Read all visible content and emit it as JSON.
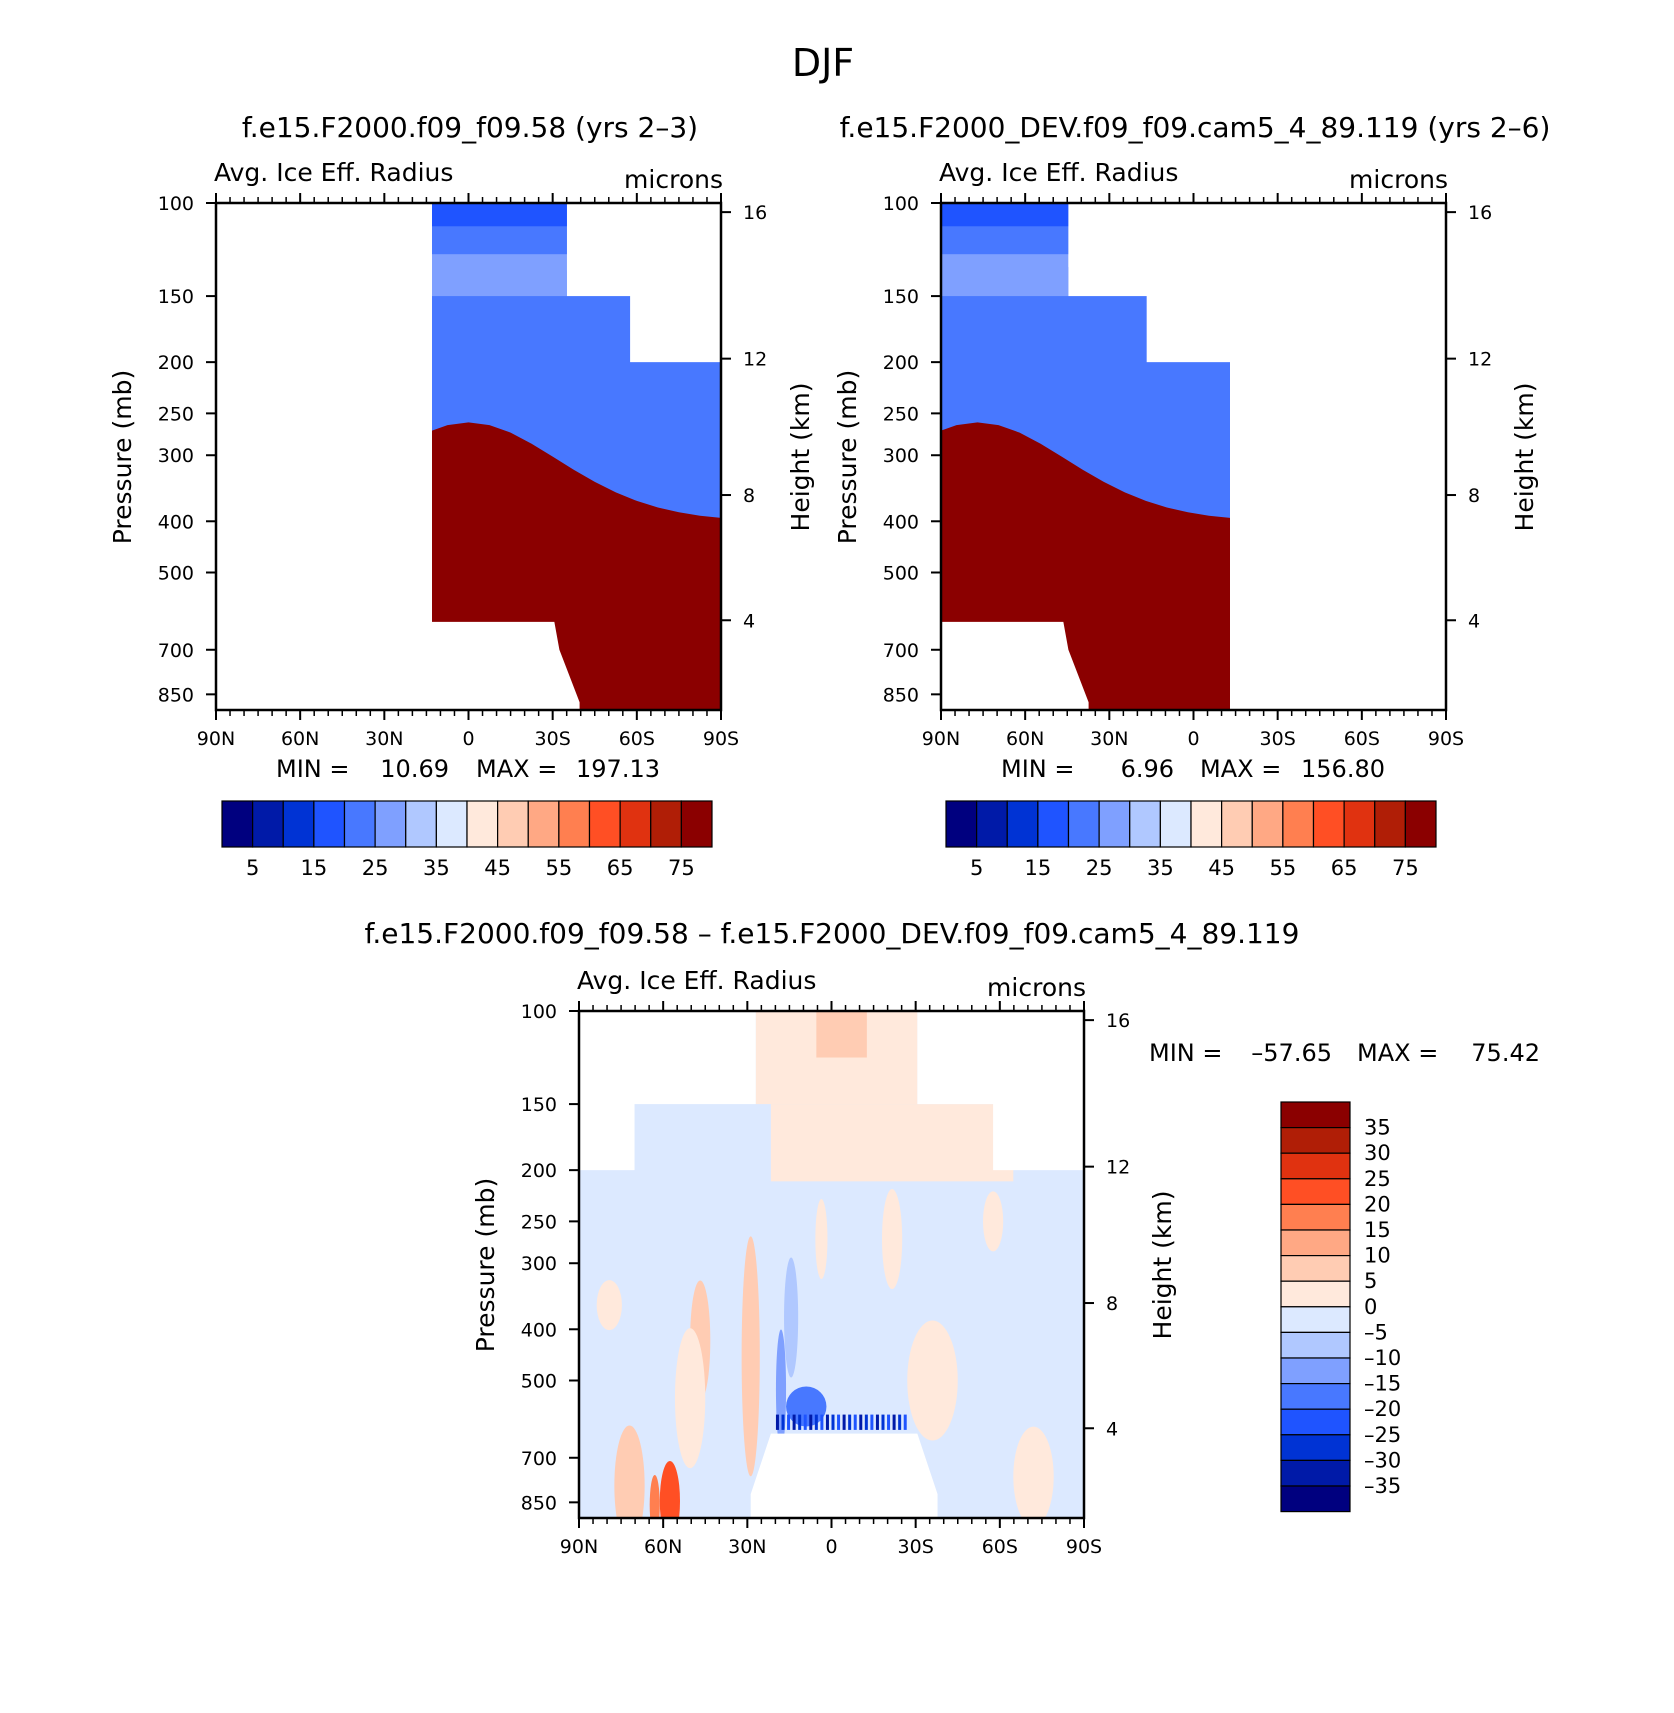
{
  "figure": {
    "title": "DJF",
    "case_a": "f.e15.F2000.f09_f09.58 (yrs 2–3)",
    "case_b": "f.e15.F2000_DEV.f09_f09.cam5_4_89.119 (yrs 2–6)",
    "diff_title": "f.e15.F2000.f09_f09.58 – f.e15.F2000_DEV.f09_f09.cam5_4_89.119"
  },
  "colors": {
    "abs_scale": [
      "#00007f",
      "#001aa8",
      "#0033d4",
      "#1f54ff",
      "#4878ff",
      "#7fa0ff",
      "#b0c8ff",
      "#dce9ff",
      "#ffe9dc",
      "#ffccb3",
      "#ffa884",
      "#ff7f50",
      "#ff4f24",
      "#e03210",
      "#b01e06",
      "#8b0000"
    ],
    "diff_scale": [
      "#00007f",
      "#001aa8",
      "#0033d4",
      "#1f54ff",
      "#4878ff",
      "#7fa0ff",
      "#b0c8ff",
      "#dce9ff",
      "#ffe9dc",
      "#ffccb3",
      "#ffa884",
      "#ff7f50",
      "#ff4f24",
      "#e03210",
      "#b01e06",
      "#8b0000"
    ]
  },
  "chart_data": [
    {
      "type": "heatmap",
      "panel": "case_a",
      "title": "Avg. Ice Eff. Radius",
      "units": "microns",
      "xlabel": "",
      "ylabel": "Pressure (mb)",
      "ylabel_right": "Height (km)",
      "x_ticks": [
        "90N",
        "60N",
        "30N",
        "0",
        "30S",
        "60S",
        "90S"
      ],
      "y_ticks": [
        "100",
        "150",
        "200",
        "250",
        "300",
        "400",
        "500",
        "700",
        "850"
      ],
      "y_right_ticks": [
        "16",
        "12",
        "8",
        "4"
      ],
      "min_label": "MIN =",
      "min_value": "10.69",
      "max_label": "MAX =",
      "max_value": "197.13",
      "colorbar_labels": [
        "5",
        "15",
        "25",
        "35",
        "45",
        "55",
        "65",
        "75"
      ]
    },
    {
      "type": "heatmap",
      "panel": "case_b",
      "title": "Avg. Ice Eff. Radius",
      "units": "microns",
      "xlabel": "",
      "ylabel": "Pressure (mb)",
      "ylabel_right": "Height (km)",
      "x_ticks": [
        "90N",
        "60N",
        "30N",
        "0",
        "30S",
        "60S",
        "90S"
      ],
      "y_ticks": [
        "100",
        "150",
        "200",
        "250",
        "300",
        "400",
        "500",
        "700",
        "850"
      ],
      "y_right_ticks": [
        "16",
        "12",
        "8",
        "4"
      ],
      "min_label": "MIN =",
      "min_value": "6.96",
      "max_label": "MAX =",
      "max_value": "156.80",
      "colorbar_labels": [
        "5",
        "15",
        "25",
        "35",
        "45",
        "55",
        "65",
        "75"
      ]
    },
    {
      "type": "heatmap",
      "panel": "difference",
      "title": "Avg. Ice Eff. Radius",
      "units": "microns",
      "xlabel": "",
      "ylabel": "Pressure (mb)",
      "ylabel_right": "Height (km)",
      "x_ticks": [
        "90N",
        "60N",
        "30N",
        "0",
        "30S",
        "60S",
        "90S"
      ],
      "y_ticks": [
        "100",
        "150",
        "200",
        "250",
        "300",
        "400",
        "500",
        "700",
        "850"
      ],
      "y_right_ticks": [
        "16",
        "12",
        "8",
        "4"
      ],
      "min_label": "MIN =",
      "min_value": "–57.65",
      "max_label": "MAX =",
      "max_value": "75.42",
      "colorbar_labels": [
        "35",
        "30",
        "25",
        "20",
        "15",
        "10",
        "5",
        "0",
        "–5",
        "–10",
        "–15",
        "–20",
        "–25",
        "–30",
        "–35"
      ]
    }
  ]
}
